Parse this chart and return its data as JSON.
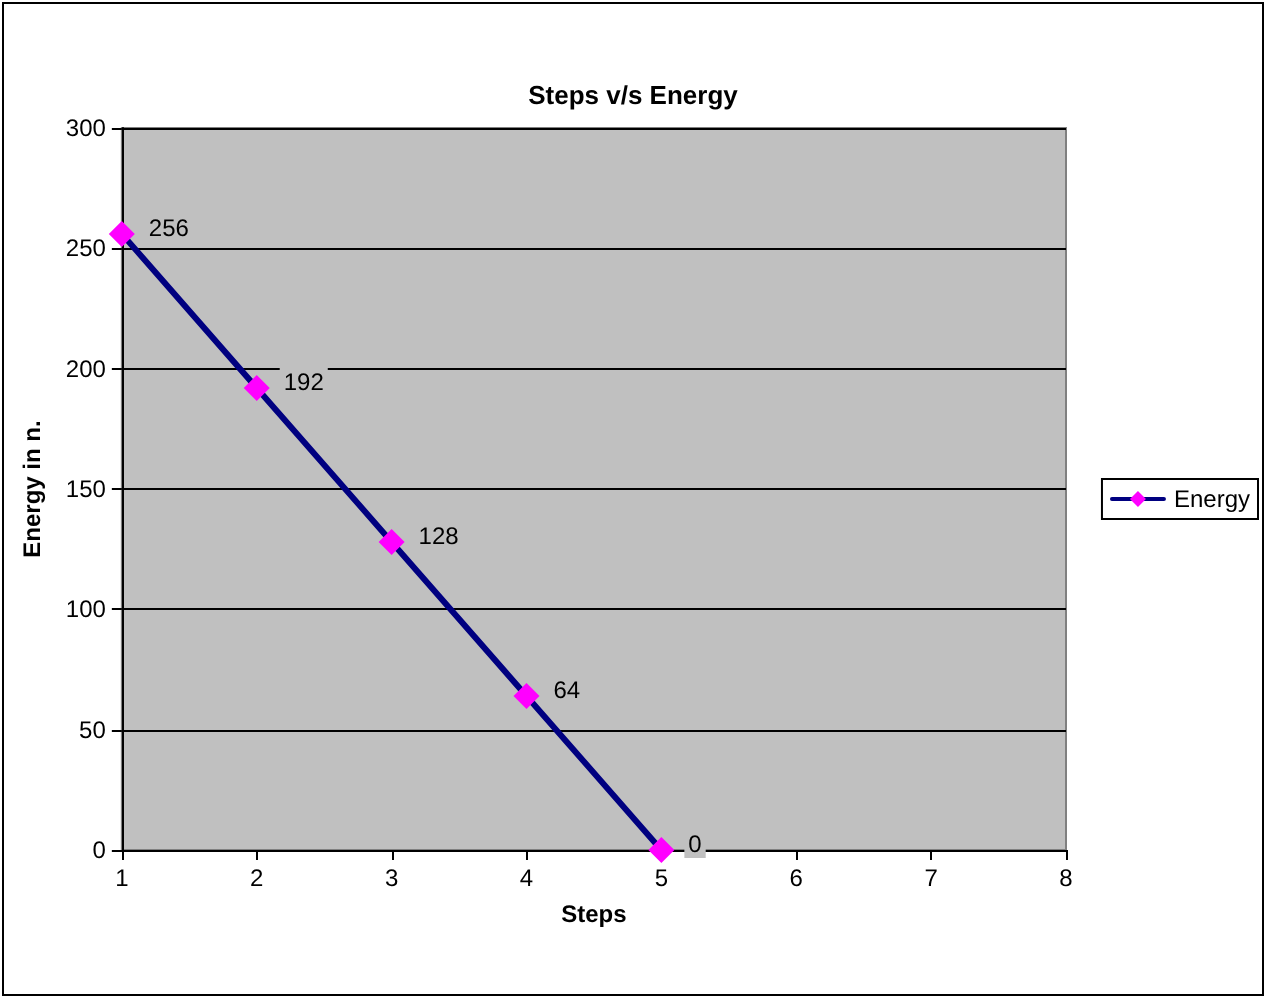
{
  "chart_data": {
    "type": "line",
    "title": "Steps v/s Energy",
    "xlabel": "Steps",
    "ylabel": "Energy in n.",
    "x": [
      1,
      2,
      3,
      4,
      5
    ],
    "series": [
      {
        "name": "Energy",
        "color": "#000080",
        "values": [
          256,
          192,
          128,
          64,
          0
        ]
      }
    ],
    "xlim": [
      1,
      8
    ],
    "xticks": [
      1,
      2,
      3,
      4,
      5,
      6,
      7,
      8
    ],
    "ylim": [
      0,
      300
    ],
    "yticks": [
      0,
      50,
      100,
      150,
      200,
      250,
      300
    ],
    "grid": "y",
    "legend": "right",
    "marker": "diamond",
    "line_style": "solid",
    "data_labels": true
  }
}
